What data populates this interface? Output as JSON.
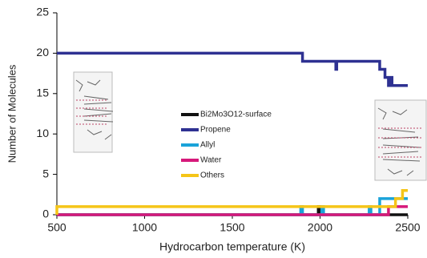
{
  "chart_data": {
    "type": "line",
    "x_label": "Hydrocarbon temperature (K)",
    "y_label": "Number of Molecules",
    "xlim": [
      500,
      2500
    ],
    "xticks": [
      500,
      1000,
      1500,
      2000,
      2500
    ],
    "ylim": [
      0,
      25
    ],
    "yticks": [
      0,
      5,
      10,
      15,
      20,
      25
    ],
    "series": [
      {
        "name": "Bi2Mo3O12-surface",
        "color": "#111111",
        "x": [
          500,
          1990,
          1990,
          2000,
          2000,
          2500
        ],
        "values": [
          0,
          0,
          1,
          1,
          0,
          0
        ]
      },
      {
        "name": "Propene",
        "color": "#2e3192",
        "x": [
          500,
          1900,
          1900,
          2090,
          2090,
          2095,
          2095,
          2340,
          2340,
          2370,
          2370,
          2390,
          2390,
          2400,
          2400,
          2410,
          2410,
          2500
        ],
        "values": [
          20,
          20,
          19,
          19,
          18,
          18,
          19,
          19,
          18,
          18,
          17,
          17,
          16,
          16,
          17,
          17,
          16,
          16
        ]
      },
      {
        "name": "Allyl",
        "color": "#1aa3d9",
        "x": [
          500,
          1890,
          1890,
          1900,
          1900,
          2010,
          2010,
          2020,
          2020,
          2280,
          2280,
          2290,
          2290,
          2340,
          2340,
          2500
        ],
        "values": [
          0,
          0,
          1,
          1,
          0,
          0,
          1,
          1,
          0,
          0,
          1,
          1,
          0,
          0,
          2,
          2
        ]
      },
      {
        "name": "Water",
        "color": "#d6197a",
        "x": [
          500,
          2390,
          2390,
          2500
        ],
        "values": [
          0,
          0,
          1,
          1
        ]
      },
      {
        "name": "Others",
        "color": "#f5c518",
        "x": [
          500,
          500,
          2430,
          2430,
          2470,
          2470,
          2500
        ],
        "values": [
          0,
          1,
          1,
          2,
          2,
          3,
          3
        ]
      }
    ]
  }
}
